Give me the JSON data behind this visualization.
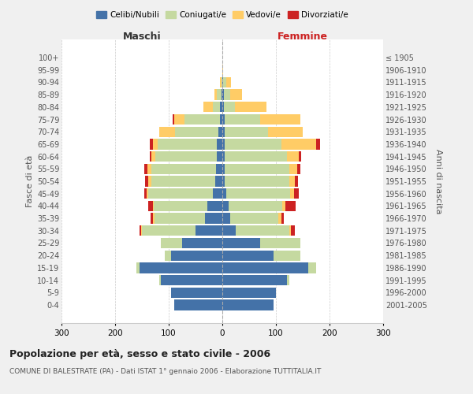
{
  "age_groups": [
    "0-4",
    "5-9",
    "10-14",
    "15-19",
    "20-24",
    "25-29",
    "30-34",
    "35-39",
    "40-44",
    "45-49",
    "50-54",
    "55-59",
    "60-64",
    "65-69",
    "70-74",
    "75-79",
    "80-84",
    "85-89",
    "90-94",
    "95-99",
    "100+"
  ],
  "birth_years": [
    "2001-2005",
    "1996-2000",
    "1991-1995",
    "1986-1990",
    "1981-1985",
    "1976-1980",
    "1971-1975",
    "1966-1970",
    "1961-1965",
    "1956-1960",
    "1951-1955",
    "1946-1950",
    "1941-1945",
    "1936-1940",
    "1931-1935",
    "1926-1930",
    "1921-1925",
    "1916-1920",
    "1911-1915",
    "1906-1910",
    "≤ 1905"
  ],
  "maschi": {
    "celibi": [
      90,
      95,
      115,
      155,
      95,
      75,
      50,
      32,
      28,
      18,
      13,
      12,
      10,
      10,
      8,
      5,
      4,
      2,
      0,
      0,
      0
    ],
    "coniugati": [
      0,
      0,
      3,
      5,
      12,
      40,
      100,
      95,
      100,
      120,
      120,
      120,
      115,
      110,
      80,
      65,
      14,
      8,
      2,
      0,
      0
    ],
    "vedovi": [
      0,
      0,
      0,
      0,
      0,
      0,
      2,
      2,
      2,
      3,
      5,
      8,
      8,
      10,
      30,
      20,
      18,
      4,
      2,
      0,
      0
    ],
    "divorziati": [
      0,
      0,
      0,
      0,
      0,
      0,
      2,
      5,
      8,
      4,
      6,
      6,
      2,
      5,
      0,
      2,
      0,
      0,
      0,
      0,
      0
    ]
  },
  "femmine": {
    "nubili": [
      95,
      100,
      120,
      160,
      95,
      70,
      25,
      15,
      12,
      8,
      5,
      5,
      5,
      5,
      5,
      5,
      3,
      3,
      2,
      0,
      0
    ],
    "coniugate": [
      0,
      0,
      5,
      15,
      50,
      75,
      100,
      90,
      100,
      118,
      120,
      120,
      115,
      105,
      80,
      65,
      20,
      12,
      6,
      0,
      0
    ],
    "vedove": [
      0,
      0,
      0,
      0,
      0,
      0,
      3,
      5,
      5,
      8,
      10,
      15,
      22,
      65,
      65,
      75,
      60,
      22,
      8,
      2,
      0
    ],
    "divorziate": [
      0,
      0,
      0,
      0,
      0,
      0,
      8,
      5,
      20,
      8,
      6,
      5,
      5,
      8,
      0,
      0,
      0,
      0,
      0,
      0,
      0
    ]
  },
  "colors": {
    "celibi": "#4472A8",
    "coniugati": "#C5D9A0",
    "vedovi": "#FFCC66",
    "divorziati": "#CC2222"
  },
  "legend_labels": [
    "Celibi/Nubili",
    "Coniugati/e",
    "Vedovi/e",
    "Divorziati/e"
  ],
  "title": "Popolazione per età, sesso e stato civile - 2006",
  "subtitle": "COMUNE DI BALESTRATE (PA) - Dati ISTAT 1° gennaio 2006 - Elaborazione TUTTITALIA.IT",
  "ylabel_left": "Fasce di età",
  "ylabel_right": "Anni di nascita",
  "xlabel_left": "Maschi",
  "xlabel_right": "Femmine",
  "xlim": 300,
  "bg_color": "#f0f0f0",
  "plot_bg": "#ffffff"
}
